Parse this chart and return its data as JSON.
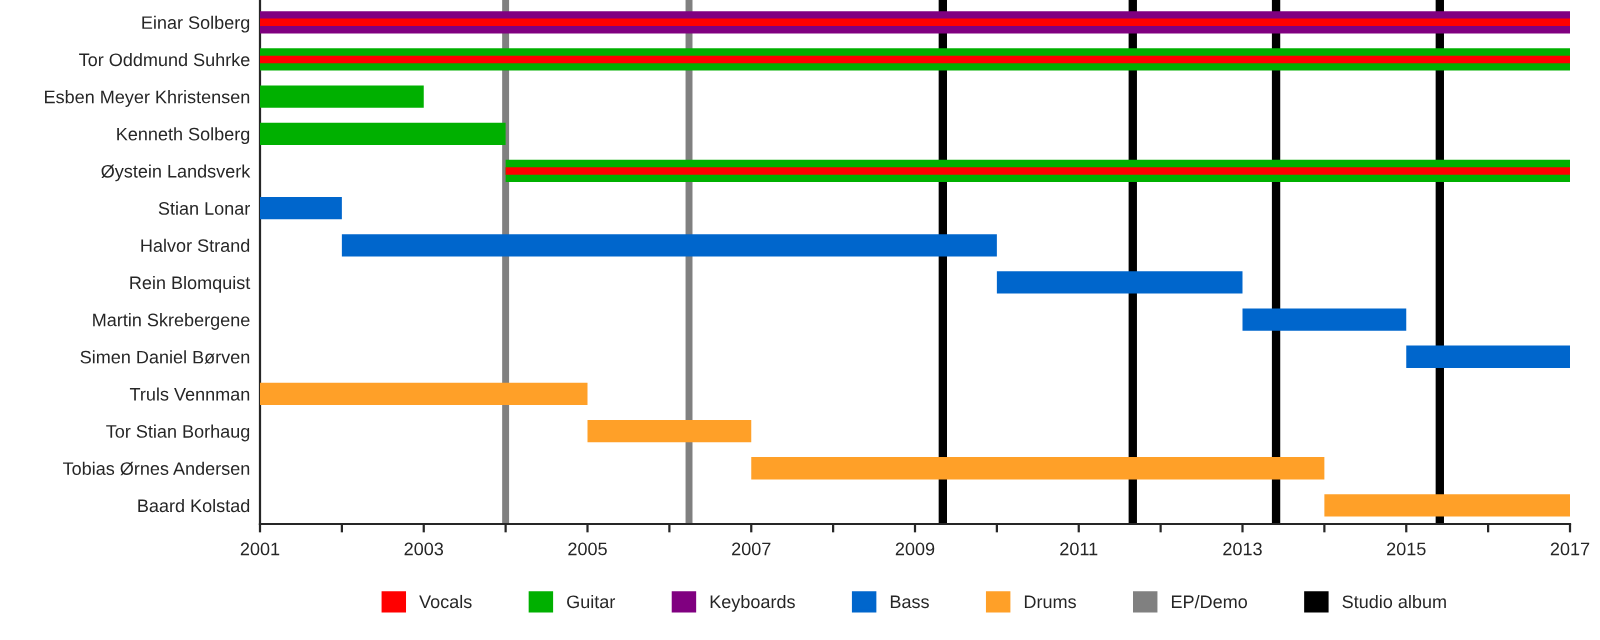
{
  "chart_data": {
    "type": "bar",
    "orientation": "horizontal",
    "categories": [
      "Einar Solberg",
      "Tor Oddmund Suhrke",
      "Esben Meyer Khristensen",
      "Kenneth Solberg",
      "Øystein Landsverk",
      "Stian Lonar",
      "Halvor Strand",
      "Rein Blomquist",
      "Martin Skrebergene",
      "Simen Daniel Børven",
      "Truls Vennman",
      "Tor Stian Borhaug",
      "Tobias Ørnes Andersen",
      "Baard Kolstad"
    ],
    "series": [
      {
        "name": "Vocals",
        "color": "#ff0000",
        "base": [
          2001,
          2001,
          null,
          null,
          2004,
          null,
          null,
          null,
          null,
          null,
          null,
          null,
          null,
          null
        ],
        "values": [
          16,
          16,
          null,
          null,
          13,
          null,
          null,
          null,
          null,
          null,
          null,
          null,
          null,
          null
        ]
      },
      {
        "name": "Guitar",
        "color": "#00b000",
        "base": [
          null,
          2001,
          2001,
          2001,
          2004,
          null,
          null,
          null,
          null,
          null,
          null,
          null,
          null,
          null
        ],
        "values": [
          null,
          16,
          2,
          3,
          13,
          null,
          null,
          null,
          null,
          null,
          null,
          null,
          null,
          null
        ]
      },
      {
        "name": "Keyboards",
        "color": "#800080",
        "base": [
          2001,
          null,
          null,
          null,
          null,
          null,
          null,
          null,
          null,
          null,
          null,
          null,
          null,
          null
        ],
        "values": [
          16,
          null,
          null,
          null,
          null,
          null,
          null,
          null,
          null,
          null,
          null,
          null,
          null,
          null
        ]
      },
      {
        "name": "Bass",
        "color": "#0066cc",
        "base": [
          null,
          null,
          null,
          null,
          null,
          2001,
          2002,
          2010,
          2013,
          2015,
          null,
          null,
          null,
          null
        ],
        "values": [
          null,
          null,
          null,
          null,
          null,
          1,
          8,
          3,
          2,
          2,
          null,
          null,
          null,
          null
        ]
      },
      {
        "name": "Drums",
        "color": "#ffa028",
        "base": [
          null,
          null,
          null,
          null,
          null,
          null,
          null,
          null,
          null,
          null,
          2001,
          2005,
          2007,
          2014
        ],
        "values": [
          null,
          null,
          null,
          null,
          null,
          null,
          null,
          null,
          null,
          null,
          4,
          2,
          7,
          3
        ]
      }
    ],
    "ref_lines": [
      {
        "axis": "x",
        "value": 2004.0,
        "label": "EP/Demo",
        "color": "#808080"
      },
      {
        "axis": "x",
        "value": 2006.24,
        "color": "#808080"
      },
      {
        "axis": "x",
        "value": 2009.34,
        "label": "Studio album",
        "color": "#000000"
      },
      {
        "axis": "x",
        "value": 2011.66,
        "color": "#000000"
      },
      {
        "axis": "x",
        "value": 2013.41,
        "color": "#000000"
      },
      {
        "axis": "x",
        "value": 2015.41,
        "color": "#000000"
      }
    ],
    "xlim": [
      2001,
      2017
    ],
    "xticks": [
      2001,
      {
        "value": 2002,
        "label": null
      },
      2003,
      {
        "value": 2004,
        "label": null
      },
      2005,
      {
        "value": 2006,
        "label": null
      },
      2007,
      {
        "value": 2008,
        "label": null
      },
      2009,
      {
        "value": 2010,
        "label": null
      },
      2011,
      {
        "value": 2012,
        "label": null
      },
      2013,
      {
        "value": 2014,
        "label": null
      },
      2015,
      {
        "value": 2016,
        "label": null
      },
      2017
    ],
    "grid": false,
    "legend": "bottom"
  }
}
